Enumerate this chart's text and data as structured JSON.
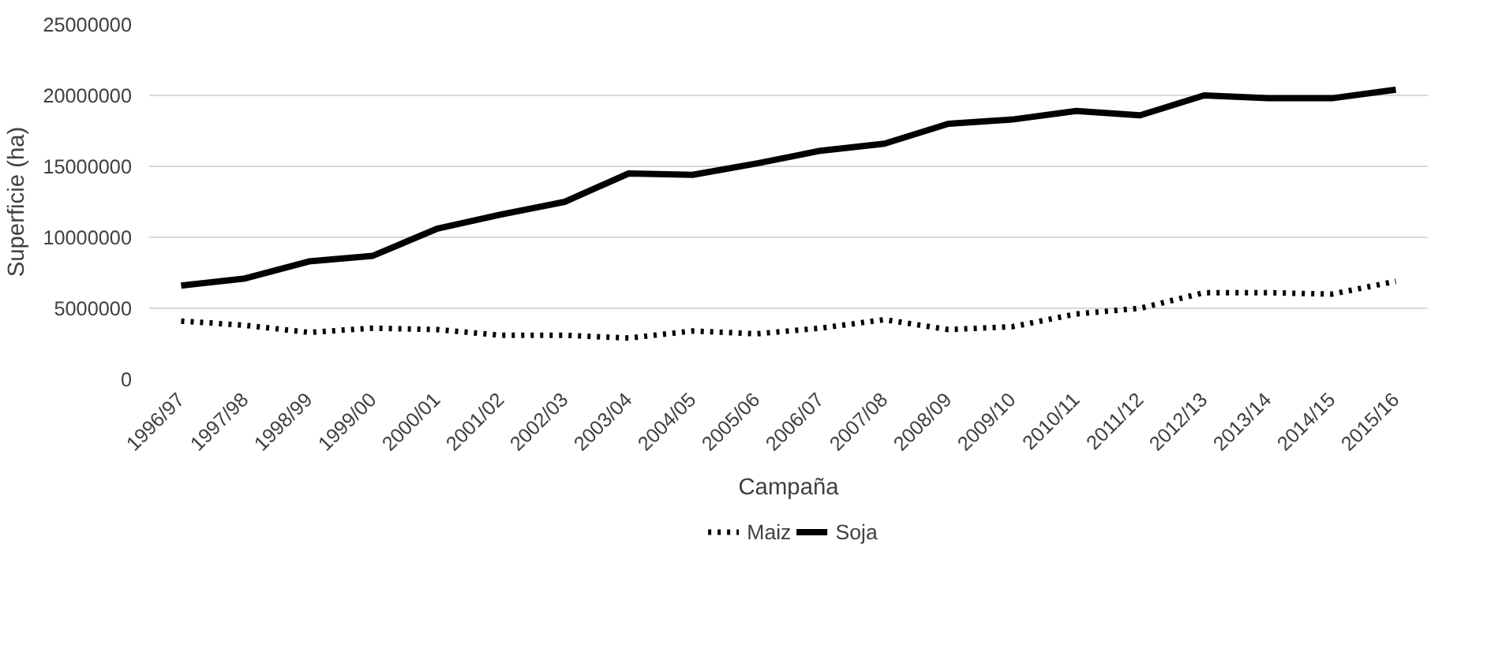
{
  "chart_data": {
    "type": "line",
    "xlabel": "Campaña",
    "ylabel": "Superficie (ha)",
    "categories": [
      "1996/97",
      "1997/98",
      "1998/99",
      "1999/00",
      "2000/01",
      "2001/02",
      "2002/03",
      "2003/04",
      "2004/05",
      "2005/06",
      "2006/07",
      "2007/08",
      "2008/09",
      "2009/10",
      "2010/11",
      "2011/12",
      "2012/13",
      "2013/14",
      "2014/15",
      "2015/16"
    ],
    "series": [
      {
        "name": "Maiz",
        "color": "#000000",
        "line_style": "dotted",
        "values": [
          4100000,
          3800000,
          3300000,
          3600000,
          3500000,
          3100000,
          3100000,
          2900000,
          3400000,
          3200000,
          3600000,
          4200000,
          3500000,
          3700000,
          4600000,
          5000000,
          6100000,
          6100000,
          6000000,
          6900000
        ]
      },
      {
        "name": "Soja",
        "color": "#000000",
        "line_style": "solid",
        "values": [
          6600000,
          7100000,
          8300000,
          8700000,
          10600000,
          11600000,
          12500000,
          14500000,
          14400000,
          15200000,
          16100000,
          16600000,
          18000000,
          18300000,
          18900000,
          18600000,
          20000000,
          19800000,
          19800000,
          20400000
        ]
      }
    ],
    "ylim": [
      0,
      25000000
    ],
    "yticks": [
      0,
      5000000,
      10000000,
      15000000,
      20000000,
      25000000
    ],
    "grid": "y",
    "legend": "bottom",
    "marker": "none"
  }
}
